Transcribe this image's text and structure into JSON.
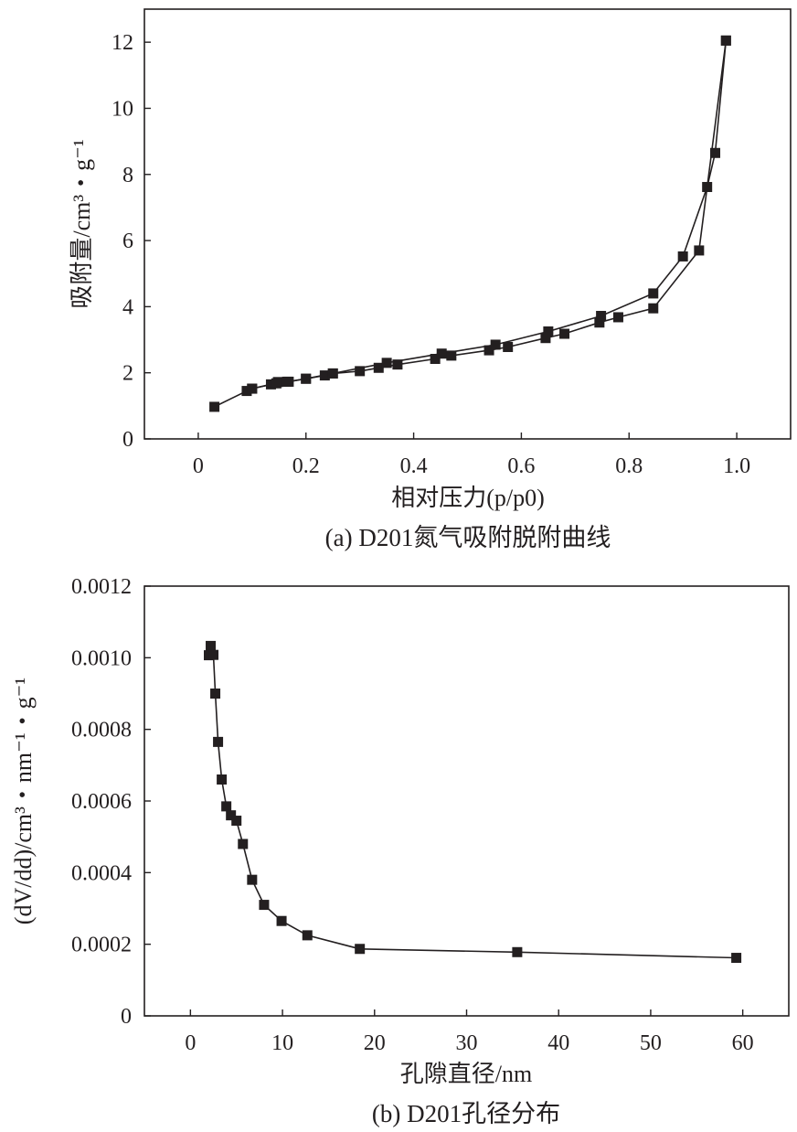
{
  "chart_data": [
    {
      "type": "line",
      "caption": "(a) D201氮气吸附脱附曲线",
      "xlabel": "相对压力(p/p0)",
      "ylabel": "吸附量/cm³・g⁻¹",
      "xlim": [
        -0.1,
        1.1
      ],
      "ylim": [
        0,
        13
      ],
      "xticks": [
        0,
        0.2,
        0.4,
        0.6,
        0.8,
        1.0
      ],
      "xtick_labels": [
        "0",
        "0.2",
        "0.4",
        "0.6",
        "0.8",
        "1.0"
      ],
      "yticks": [
        0,
        2,
        4,
        6,
        8,
        10,
        12
      ],
      "ytick_labels": [
        "0",
        "2",
        "4",
        "6",
        "8",
        "10",
        "12"
      ],
      "grid": false,
      "series": [
        {
          "x": [
            0.03,
            0.09,
            0.1,
            0.135,
            0.148,
            0.168,
            0.2,
            0.235,
            0.25,
            0.3,
            0.335,
            0.37,
            0.44,
            0.47,
            0.54,
            0.575,
            0.645,
            0.68,
            0.745,
            0.78,
            0.845,
            0.93,
            0.98
          ],
          "y": [
            0.97,
            1.45,
            1.52,
            1.65,
            1.72,
            1.73,
            1.82,
            1.92,
            1.98,
            2.05,
            2.15,
            2.25,
            2.42,
            2.52,
            2.68,
            2.78,
            3.05,
            3.18,
            3.52,
            3.68,
            3.95,
            5.7,
            12.05
          ]
        },
        {
          "x": [
            0.98,
            0.96,
            0.945,
            0.9,
            0.845,
            0.748,
            0.65,
            0.552,
            0.452,
            0.35,
            0.25,
            0.2,
            0.165,
            0.145,
            0.1
          ],
          "y": [
            12.05,
            8.65,
            7.62,
            5.52,
            4.4,
            3.72,
            3.25,
            2.85,
            2.58,
            2.3,
            1.98,
            1.82,
            1.73,
            1.68,
            1.52
          ]
        }
      ]
    },
    {
      "type": "line",
      "caption": "(b) D201孔径分布",
      "xlabel": "孔隙直径/nm",
      "ylabel": "(dV/dd)/cm³・nm⁻¹・g⁻¹",
      "xlim": [
        -5,
        65
      ],
      "ylim": [
        0,
        0.0012
      ],
      "xticks": [
        0,
        10,
        20,
        30,
        40,
        50,
        60
      ],
      "xtick_labels": [
        "0",
        "10",
        "20",
        "30",
        "40",
        "50",
        "60"
      ],
      "yticks": [
        0,
        0.0002,
        0.0004,
        0.0006,
        0.0008,
        0.001,
        0.0012
      ],
      "ytick_labels": [
        "0",
        "0.0002",
        "0.0004",
        "0.0006",
        "0.0008",
        "0.0010",
        "0.0012"
      ],
      "grid": false,
      "series": [
        {
          "x": [
            2.0,
            2.2,
            2.5,
            2.7,
            3.0,
            3.4,
            3.9,
            4.4,
            5.0,
            5.7,
            6.7,
            8.0,
            9.9,
            12.7,
            18.4,
            35.5,
            59.3
          ],
          "y": [
            0.001007,
            0.001033,
            0.001008,
            0.0009,
            0.000765,
            0.00066,
            0.000585,
            0.00056,
            0.000545,
            0.00048,
            0.00038,
            0.00031,
            0.000265,
            0.000225,
            0.000187,
            0.000178,
            0.000162
          ]
        }
      ]
    }
  ]
}
